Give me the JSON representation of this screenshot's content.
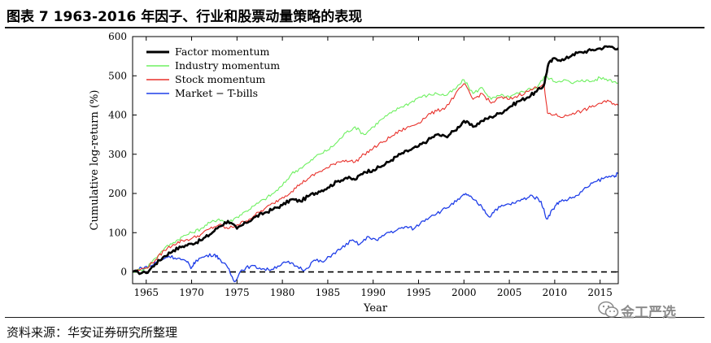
{
  "figure": {
    "title": "图表 7 1963-2016 年因子、行业和股票动量策略的表现",
    "source": "资料来源：华安证券研究所整理",
    "watermark": "金工严选"
  },
  "chart_data": {
    "type": "line",
    "title": "",
    "xlabel": "Year",
    "ylabel": "Cumulative log-return (%)",
    "xlim": [
      1963.5,
      2017
    ],
    "ylim": [
      -30,
      600
    ],
    "xticks": [
      1965,
      1970,
      1975,
      1980,
      1985,
      1990,
      1995,
      2000,
      2005,
      2010,
      2015
    ],
    "yticks": [
      0,
      100,
      200,
      300,
      400,
      500,
      600
    ],
    "legend_position": "top-left",
    "zero_line": true,
    "series": [
      {
        "name": "Factor momentum",
        "color": "#000000",
        "x": [
          1963.5,
          1965,
          1966,
          1967,
          1968,
          1969,
          1970,
          1971,
          1972,
          1973,
          1974,
          1975,
          1976,
          1977,
          1978,
          1979,
          1980,
          1981,
          1982,
          1983,
          1984,
          1985,
          1986,
          1987,
          1988,
          1989,
          1990,
          1991,
          1992,
          1993,
          1994,
          1995,
          1996,
          1997,
          1998,
          1999,
          2000,
          2001,
          2002,
          2003,
          2004,
          2005,
          2006,
          2007,
          2008,
          2008.8,
          2009.3,
          2010,
          2011,
          2012,
          2013,
          2014,
          2015,
          2016,
          2017
        ],
        "y": [
          0,
          -3,
          20,
          40,
          55,
          65,
          72,
          80,
          95,
          115,
          130,
          110,
          125,
          140,
          150,
          160,
          170,
          185,
          180,
          195,
          205,
          215,
          230,
          240,
          235,
          255,
          260,
          270,
          285,
          300,
          310,
          320,
          335,
          350,
          345,
          360,
          385,
          370,
          385,
          395,
          405,
          420,
          435,
          445,
          460,
          475,
          530,
          545,
          540,
          555,
          560,
          565,
          570,
          575,
          570
        ]
      },
      {
        "name": "Industry momentum",
        "color": "#6ef060",
        "x": [
          1963.5,
          1965,
          1966,
          1967,
          1968,
          1969,
          1970,
          1971,
          1972,
          1973,
          1974,
          1975,
          1976,
          1977,
          1978,
          1979,
          1980,
          1981,
          1982,
          1983,
          1984,
          1985,
          1986,
          1987,
          1988,
          1989,
          1990,
          1991,
          1992,
          1993,
          1994,
          1995,
          1996,
          1997,
          1998,
          1999,
          2000,
          2001,
          2002,
          2003,
          2004,
          2005,
          2006,
          2007,
          2008,
          2009,
          2010,
          2011,
          2012,
          2013,
          2014,
          2015,
          2016,
          2017
        ],
        "y": [
          0,
          10,
          35,
          60,
          75,
          90,
          100,
          110,
          125,
          135,
          125,
          140,
          155,
          170,
          185,
          200,
          220,
          250,
          265,
          280,
          300,
          310,
          330,
          355,
          370,
          350,
          370,
          390,
          405,
          420,
          430,
          445,
          450,
          455,
          450,
          465,
          490,
          455,
          470,
          440,
          450,
          445,
          455,
          465,
          470,
          500,
          485,
          490,
          480,
          490,
          485,
          495,
          490,
          482
        ]
      },
      {
        "name": "Stock momentum",
        "color": "#e8302a",
        "x": [
          1963.5,
          1965,
          1966,
          1967,
          1968,
          1969,
          1970,
          1971,
          1972,
          1973,
          1974,
          1975,
          1976,
          1977,
          1978,
          1979,
          1980,
          1981,
          1982,
          1983,
          1984,
          1985,
          1986,
          1987,
          1988,
          1989,
          1990,
          1991,
          1992,
          1993,
          1994,
          1995,
          1996,
          1997,
          1998,
          1999,
          2000,
          2001,
          2002,
          2003,
          2004,
          2005,
          2006,
          2007,
          2008,
          2008.8,
          2009.2,
          2010,
          2011,
          2012,
          2013,
          2014,
          2015,
          2016,
          2017
        ],
        "y": [
          0,
          10,
          30,
          55,
          70,
          80,
          85,
          95,
          110,
          120,
          110,
          120,
          130,
          145,
          160,
          175,
          190,
          205,
          225,
          240,
          255,
          265,
          280,
          285,
          280,
          300,
          315,
          330,
          345,
          360,
          370,
          380,
          400,
          410,
          420,
          450,
          480,
          440,
          455,
          430,
          445,
          440,
          450,
          460,
          470,
          480,
          405,
          400,
          395,
          405,
          410,
          420,
          430,
          435,
          425
        ]
      },
      {
        "name": "Market − T-bills",
        "color": "#1f3ee8",
        "x": [
          1963.5,
          1964.5,
          1965.5,
          1966.5,
          1967.5,
          1968.5,
          1969.5,
          1970,
          1970.5,
          1971.5,
          1972.5,
          1973,
          1974,
          1974.7,
          1975.5,
          1976.5,
          1977.5,
          1978.5,
          1979.5,
          1980.5,
          1981.5,
          1982.5,
          1983.5,
          1984.5,
          1985.5,
          1986.5,
          1987.6,
          1988.5,
          1989.5,
          1990.5,
          1991.5,
          1992.5,
          1993.5,
          1994.5,
          1995.5,
          1996.5,
          1997.5,
          1998.5,
          1999.5,
          2000.2,
          2001,
          2002,
          2002.8,
          2003.5,
          2004.5,
          2005.5,
          2006.5,
          2007.5,
          2008.5,
          2009.1,
          2009.8,
          2010.5,
          2011.5,
          2012.5,
          2013.5,
          2014.5,
          2015.5,
          2016.5,
          2017
        ],
        "y": [
          0,
          10,
          15,
          30,
          40,
          35,
          25,
          10,
          30,
          40,
          45,
          35,
          10,
          -25,
          5,
          15,
          10,
          5,
          15,
          25,
          15,
          5,
          30,
          25,
          45,
          60,
          80,
          70,
          90,
          80,
          100,
          105,
          115,
          110,
          130,
          145,
          155,
          170,
          185,
          200,
          185,
          165,
          140,
          160,
          170,
          175,
          185,
          195,
          180,
          135,
          160,
          180,
          185,
          195,
          215,
          230,
          240,
          245,
          250
        ]
      }
    ]
  }
}
